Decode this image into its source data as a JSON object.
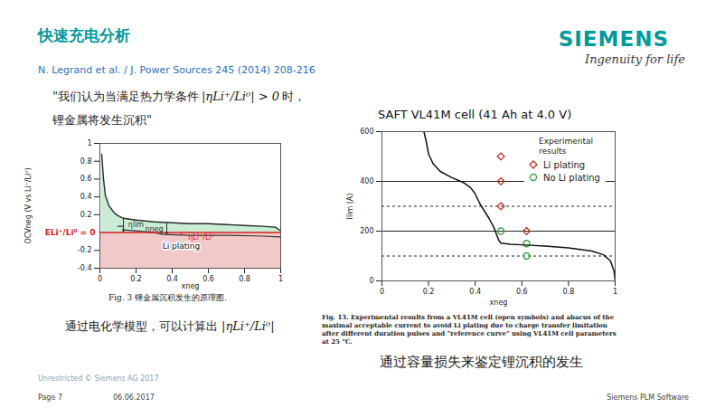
{
  "header": {
    "title": "快速充电分析",
    "logo": "SIEMENS",
    "tagline": "Ingenuity for life",
    "reference": "N. Legrand et al. / J. Power Sources 245 (2014) 208-216"
  },
  "quote": {
    "line1": "\"我们认为当满足热力学条件",
    "condition": "|ηLi⁺/Li⁰| > 0",
    "line1_end": "时，",
    "line2": "锂金属将发生沉积\""
  },
  "left": {
    "caption": "Fig. 3 锂金属沉积发生的原理图.",
    "note": "通过电化学模型，可以计算出",
    "note_symbol": "|ηLi⁺/Li⁰|"
  },
  "right": {
    "caption": "Fig. 13. Experimental results from a VL41M cell (open symbols) and abacus of the maximal acceptable current to avoid Li plating due to charge transfer limitation after different duration pulses and \"reference curve\" using VL41M cell parameters at 25 °C.",
    "note": "通过容量损失来鉴定锂沉积的发生"
  },
  "footer": {
    "classification": "Unrestricted © Siemens AG 2017",
    "page": "Page 7",
    "date": "06.06.2017",
    "unit": "Siemens PLM Software"
  },
  "chart_data": [
    {
      "type": "area",
      "x_label": "xneg",
      "y_label": "OCVneg (V vs Li⁺/Li⁰)",
      "xlim": [
        0,
        1
      ],
      "ylim": [
        -0.4,
        1
      ],
      "xticks": [
        0,
        0.2,
        0.4,
        0.6,
        0.8,
        1
      ],
      "yticks": [
        -0.4,
        -0.2,
        0.2,
        0.4,
        0.6,
        0.8,
        1
      ],
      "series": [
        {
          "type": "area",
          "color": "#c8ecd4",
          "x": [
            0.01,
            0.02,
            0.03,
            0.05,
            0.08,
            0.1,
            0.13,
            0.2,
            0.3,
            0.4,
            0.5,
            0.6,
            0.7,
            0.8,
            0.9,
            0.97,
            1
          ],
          "values": [
            0.88,
            0.6,
            0.42,
            0.3,
            0.22,
            0.19,
            0.16,
            0.14,
            0.12,
            0.11,
            0.1,
            0.1,
            0.09,
            0.08,
            0.07,
            0.06,
            0.02
          ]
        },
        {
          "type": "line",
          "color": "#333333",
          "x": [
            0.1,
            0.13,
            0.13,
            0.2,
            0.3,
            0.35,
            0.5,
            0.7,
            0.9,
            1
          ],
          "values": [
            0.07,
            0.07,
            0.03,
            0.02,
            0,
            -0.02,
            -0.03,
            -0.03,
            -0.04,
            -0.05
          ]
        }
      ],
      "region": {
        "label": "Li plating",
        "y_range": [
          -0.4,
          0
        ],
        "color": "#eaa5a5",
        "label_x": 0.45,
        "label_y": -0.15
      },
      "reference_line": {
        "label": "ELi⁺/Li⁰ = 0",
        "y": 0,
        "color": "#d42020"
      },
      "arrows": [
        {
          "label": "ηlim",
          "x": 0.13,
          "y_from": 0.16,
          "y_to": 0.01,
          "label_x": 0.2,
          "label_y": 0.09,
          "color": "#333333"
        },
        {
          "label": "ηneg",
          "x": 0.37,
          "y_from": 0.11,
          "y_to": -0.02,
          "label_x": 0.3,
          "label_y": 0.04,
          "color": "#333333"
        },
        {
          "label": "ηLi⁺/Li⁰",
          "x": 0.45,
          "y_from": 0,
          "y_to": -0.03,
          "label_x": 0.56,
          "label_y": -0.05,
          "color": "#d42020"
        }
      ]
    },
    {
      "type": "scatter",
      "title": "SAFT VL41M cell (41 Ah at 4.0 V)",
      "x_label": "xneg",
      "y_label": "Ilim (A)",
      "xlim": [
        0,
        1
      ],
      "ylim": [
        0,
        600
      ],
      "xticks": [
        0,
        0.2,
        0.4,
        0.6,
        0.8,
        1
      ],
      "yticks": [
        0,
        200,
        400,
        600
      ],
      "legend": "top-right",
      "legend_title": "Experimental results",
      "series": [
        {
          "name": "Li plating",
          "type": "scatter",
          "marker": "diamond",
          "color": "#c0392b",
          "x": [
            0.51,
            0.51,
            0.51,
            0.62
          ],
          "values": [
            500,
            400,
            300,
            200
          ]
        },
        {
          "name": "No Li plating",
          "type": "scatter",
          "marker": "circle",
          "color": "#3aa14a",
          "x": [
            0.51,
            0.62,
            0.62
          ],
          "values": [
            200,
            150,
            100
          ]
        },
        {
          "type": "line",
          "color": "#111111",
          "x": [
            0.18,
            0.19,
            0.2,
            0.22,
            0.25,
            0.3,
            0.35,
            0.38,
            0.4,
            0.42,
            0.44,
            0.46,
            0.48,
            0.49,
            0.5,
            0.51,
            0.55,
            0.6,
            0.7,
            0.8,
            0.9,
            0.95,
            0.98,
            0.995,
            1
          ],
          "values": [
            600,
            560,
            510,
            470,
            440,
            415,
            395,
            375,
            350,
            310,
            280,
            250,
            215,
            190,
            165,
            152,
            147,
            145,
            140,
            133,
            120,
            105,
            80,
            40,
            0
          ]
        }
      ],
      "reference_lines": [
        {
          "y": 400,
          "line_style": "solid"
        },
        {
          "y": 300,
          "line_style": "dashed"
        },
        {
          "y": 200,
          "line_style": "solid"
        },
        {
          "y": 100,
          "line_style": "dashed"
        }
      ]
    }
  ]
}
